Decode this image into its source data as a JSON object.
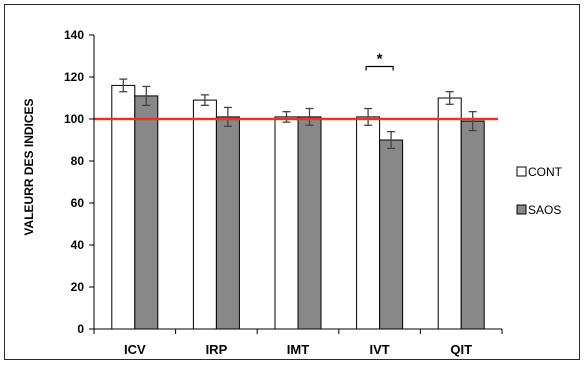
{
  "chart_data": {
    "type": "bar",
    "title": "",
    "xlabel": "",
    "ylabel": "VALEURR DES INDICES",
    "ylim": [
      0,
      140
    ],
    "yticks": [
      0,
      20,
      40,
      60,
      80,
      100,
      120,
      140
    ],
    "categories": [
      "ICV",
      "IRP",
      "IMT",
      "IVT",
      "QIT"
    ],
    "series": [
      {
        "name": "CONT",
        "values": [
          116,
          109,
          101,
          101,
          110
        ],
        "errors": [
          3,
          2.5,
          2.5,
          4,
          3
        ],
        "color": "#ffffff"
      },
      {
        "name": "SAOS",
        "values": [
          111,
          101,
          101,
          90,
          99
        ],
        "errors": [
          4.5,
          4.5,
          4,
          4,
          4.5
        ],
        "color": "#888888"
      }
    ],
    "reference_line": {
      "value": 100,
      "color": "#e8332a"
    },
    "significance": {
      "category": "IVT",
      "label": "*"
    },
    "legend_position": "right",
    "grid": false
  }
}
